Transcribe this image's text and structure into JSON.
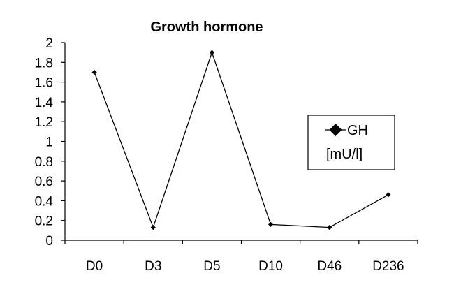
{
  "chart_data": {
    "type": "line",
    "title": "Growth hormone",
    "xlabel": "",
    "ylabel": "",
    "categories": [
      "D0",
      "D3",
      "D5",
      "D10",
      "D46",
      "D236"
    ],
    "series": [
      {
        "name": "GH [mU/l]",
        "name_line1": "GH",
        "name_line2": "[mU/l]",
        "values": [
          1.7,
          0.13,
          1.9,
          0.16,
          0.13,
          0.46
        ],
        "color": "#000000",
        "marker": "diamond"
      }
    ],
    "ylim": [
      0,
      2
    ],
    "yticks": [
      "0",
      "0.2",
      "0.4",
      "0.6",
      "0.8",
      "1",
      "1.2",
      "1.4",
      "1.6",
      "1.8",
      "2"
    ],
    "grid": false,
    "legend_position": "right"
  }
}
